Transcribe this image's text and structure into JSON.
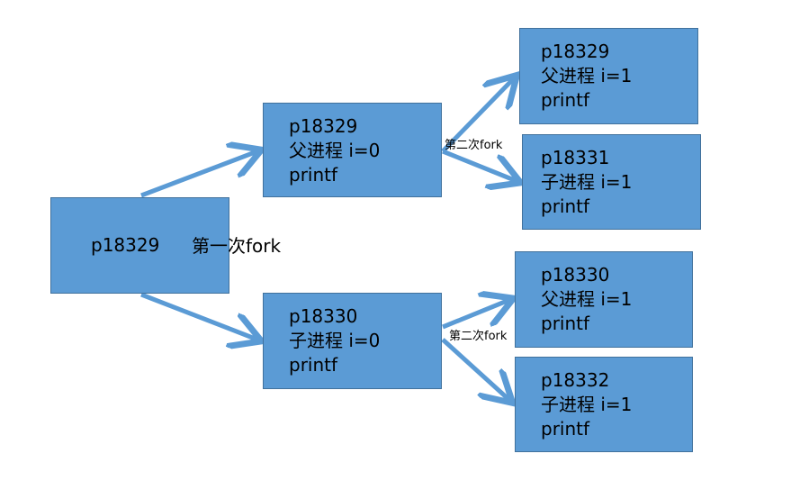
{
  "root": {
    "pid": "p18329"
  },
  "first_fork_label": "第一次fork",
  "second_fork_label": "第二次fork",
  "level1": [
    {
      "lines": [
        "p18329",
        "父进程 i=0",
        "printf"
      ]
    },
    {
      "lines": [
        "p18330",
        "子进程 i=0",
        "printf"
      ]
    }
  ],
  "level2": [
    {
      "lines": [
        "p18329",
        "父进程 i=1",
        "printf"
      ]
    },
    {
      "lines": [
        "p18331",
        "子进程 i=1",
        "printf"
      ]
    },
    {
      "lines": [
        "p18330",
        "父进程 i=1",
        "printf"
      ]
    },
    {
      "lines": [
        "p18332",
        "子进程 i=1",
        "printf"
      ]
    }
  ],
  "colors": {
    "box_fill": "#5b9bd5",
    "box_border": "#41719c",
    "arrow": "#5b9bd5"
  }
}
